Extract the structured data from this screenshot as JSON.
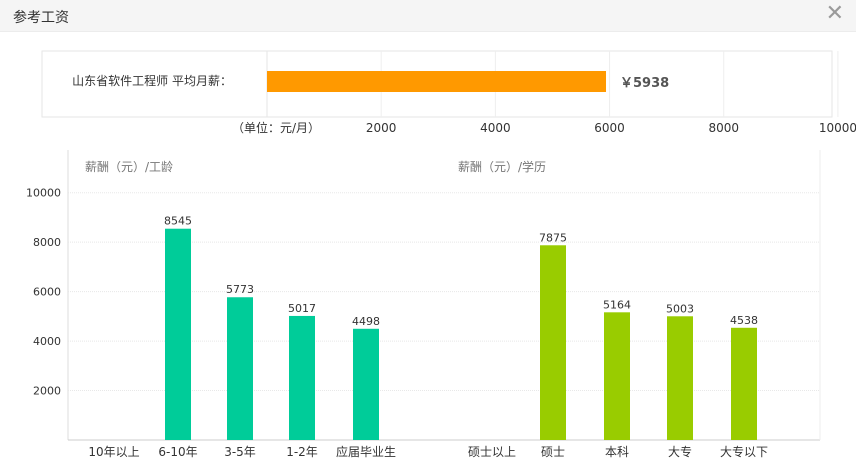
{
  "dialog": {
    "title": "参考工资",
    "close_glyph": "✕"
  },
  "chart_data": [
    {
      "type": "bar",
      "orientation": "horizontal",
      "category": "山东省软件工程师 平均月薪：",
      "value": 5938,
      "value_label": "￥5938",
      "unit_label": "（单位：元/月）",
      "xlim": [
        0,
        11000
      ],
      "xticks": [
        2000,
        4000,
        6000,
        8000,
        10000
      ],
      "color": "#ff9900"
    },
    {
      "type": "bar",
      "title": "薪酬（元）/工龄",
      "categories": [
        "10年以上",
        "6-10年",
        "3-5年",
        "1-2年",
        "应届毕业生"
      ],
      "values": [
        null,
        8545,
        5773,
        5017,
        4498
      ],
      "ylim": [
        0,
        11000
      ],
      "yticks": [
        2000,
        4000,
        6000,
        8000,
        10000
      ],
      "grid": true,
      "color": "#00cc99"
    },
    {
      "type": "bar",
      "title": "薪酬（元）/学历",
      "categories": [
        "硕士以上",
        "硕士",
        "本科",
        "大专",
        "大专以下"
      ],
      "values": [
        null,
        7875,
        5164,
        5003,
        4538
      ],
      "ylim": [
        0,
        11000
      ],
      "grid": true,
      "color": "#99cc00"
    }
  ]
}
